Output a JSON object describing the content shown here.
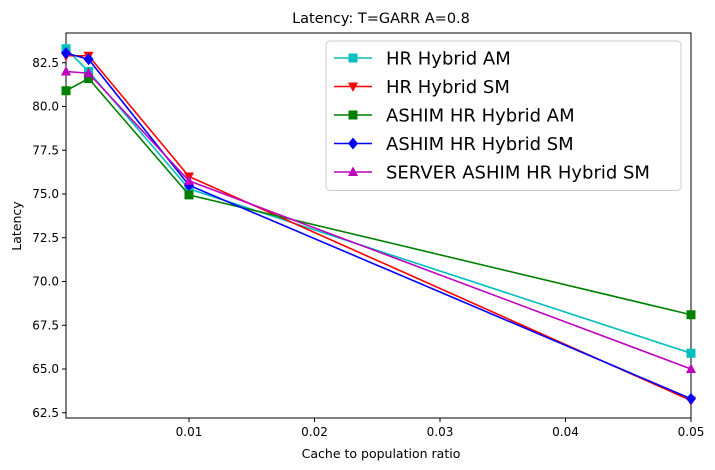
{
  "chart_data": {
    "type": "line",
    "title": "Latency: T=GARR A=0.8",
    "xlabel": "Cache to population ratio",
    "ylabel": "Latency",
    "xlim": [
      0.0002,
      0.05
    ],
    "ylim": [
      62.2,
      84.2
    ],
    "xticks": [
      0.01,
      0.02,
      0.03,
      0.04,
      0.05
    ],
    "xtick_labels": [
      "0.01",
      "0.02",
      "0.03",
      "0.04",
      "0.05"
    ],
    "yticks": [
      62.5,
      65.0,
      67.5,
      70.0,
      72.5,
      75.0,
      77.5,
      80.0,
      82.5
    ],
    "ytick_labels": [
      "62.5",
      "65.0",
      "67.5",
      "70.0",
      "72.5",
      "75.0",
      "77.5",
      "80.0",
      "82.5"
    ],
    "x": [
      0.0002,
      0.002,
      0.01,
      0.05
    ],
    "grid": false,
    "legend_position": "top-right",
    "series": [
      {
        "name": "HR Hybrid AM",
        "color": "#00bfbf",
        "marker": "square",
        "values": [
          83.3,
          82.0,
          75.3,
          65.9
        ]
      },
      {
        "name": "HR Hybrid SM",
        "color": "#ff0000",
        "marker": "triangle-down",
        "values": [
          82.9,
          82.9,
          76.0,
          63.2
        ]
      },
      {
        "name": "ASHIM HR Hybrid AM",
        "color": "#008000",
        "marker": "square",
        "values": [
          80.9,
          81.6,
          74.95,
          68.1
        ]
      },
      {
        "name": "ASHIM HR Hybrid SM",
        "color": "#0000ff",
        "marker": "diamond",
        "values": [
          83.05,
          82.7,
          75.5,
          63.3
        ]
      },
      {
        "name": "SERVER ASHIM HR Hybrid SM",
        "color": "#bf00bf",
        "marker": "triangle-up",
        "values": [
          82.0,
          81.9,
          75.75,
          65.0
        ]
      }
    ]
  }
}
